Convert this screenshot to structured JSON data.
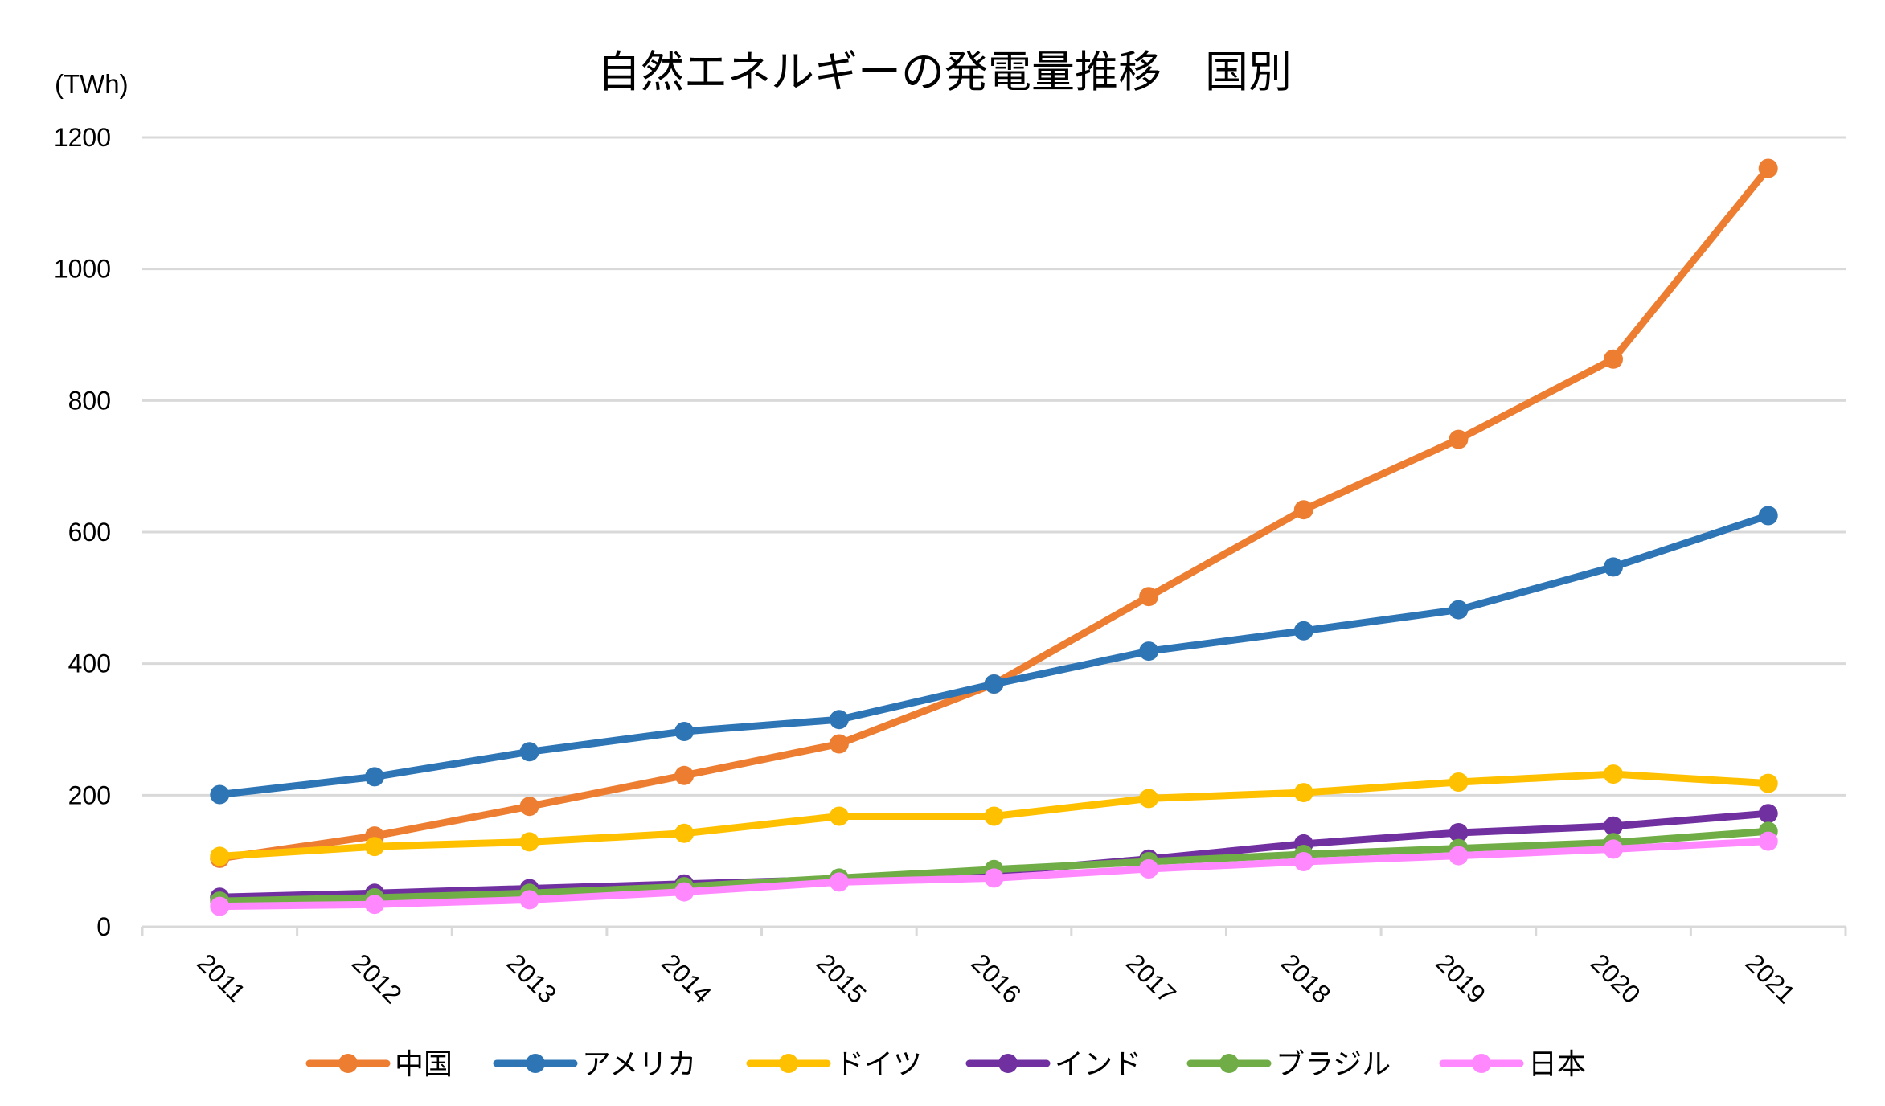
{
  "chart_data": {
    "type": "line",
    "title": "自然エネルギーの発電量推移　国別",
    "ylabel": "(TWh)",
    "xlabel": "",
    "ylim": [
      0,
      1200
    ],
    "yticks": [
      0,
      200,
      400,
      600,
      800,
      1000,
      1200
    ],
    "ytick_labels": [
      "0",
      "200",
      "400",
      "600",
      "800",
      "1000",
      "1200"
    ],
    "grid": true,
    "legend_position": "bottom",
    "categories": [
      "2011",
      "2012",
      "2013",
      "2014",
      "2015",
      "2016",
      "2017",
      "2018",
      "2019",
      "2020",
      "2021"
    ],
    "series": [
      {
        "name": "中国",
        "color": "#ED7D31",
        "values": [
          104,
          138,
          183,
          230,
          278,
          369,
          502,
          634,
          741,
          863,
          1153
        ]
      },
      {
        "name": "アメリカ",
        "color": "#2E75B6",
        "values": [
          201,
          228,
          266,
          297,
          315,
          369,
          419,
          450,
          482,
          547,
          625
        ]
      },
      {
        "name": "ドイツ",
        "color": "#FFC000",
        "values": [
          107,
          122,
          129,
          142,
          168,
          168,
          195,
          204,
          220,
          232,
          218
        ]
      },
      {
        "name": "インド",
        "color": "#7030A0",
        "values": [
          45,
          51,
          58,
          65,
          72,
          83,
          103,
          126,
          143,
          153,
          172
        ]
      },
      {
        "name": "ブラジル",
        "color": "#70AD47",
        "values": [
          39,
          44,
          51,
          61,
          74,
          87,
          99,
          110,
          119,
          128,
          145
        ]
      },
      {
        "name": "日本",
        "color": "#FF88FF",
        "values": [
          31,
          34,
          41,
          53,
          68,
          74,
          88,
          99,
          108,
          118,
          130
        ]
      }
    ]
  }
}
